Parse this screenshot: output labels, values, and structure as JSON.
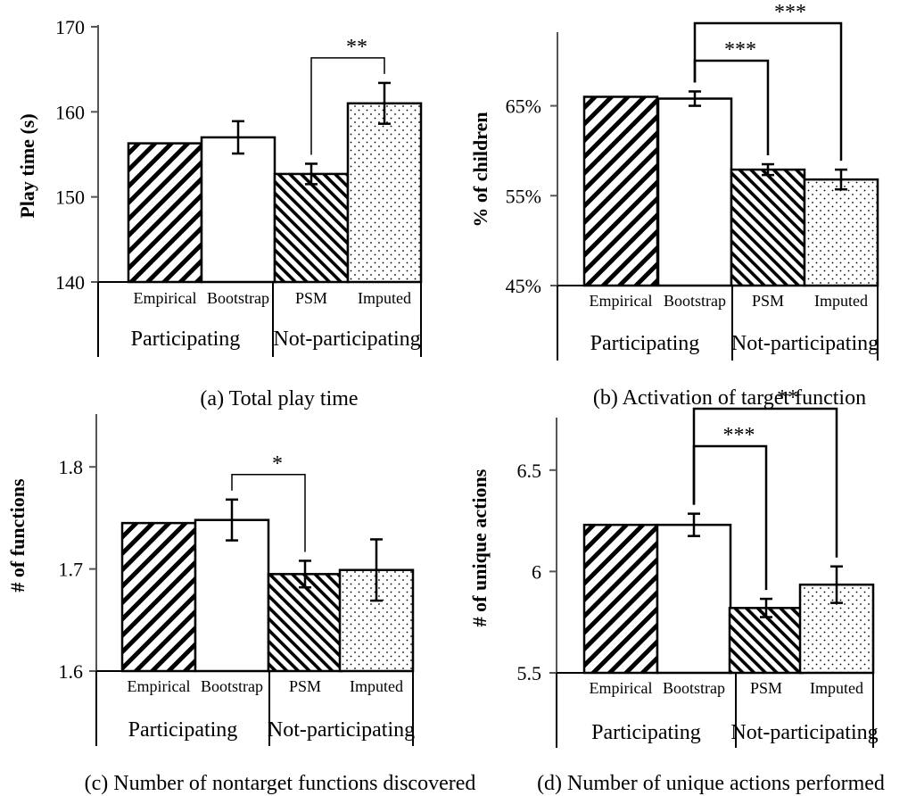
{
  "chart_data": [
    {
      "type": "bar",
      "panel": "a",
      "caption": "(a) Total play time",
      "ylabel": "Play time (s)",
      "ylim": [
        140,
        170
      ],
      "yticks": [
        "140",
        "150",
        "160",
        "170"
      ],
      "grid": false,
      "categories": [
        "Empirical",
        "Bootstrap",
        "PSM",
        "Imputed"
      ],
      "groups": [
        "Participating",
        "Not-participating"
      ],
      "values": [
        156.3,
        157.0,
        152.7,
        161.0
      ],
      "errors": [
        null,
        1.9,
        1.2,
        2.4
      ],
      "patterns": [
        "diag-wide",
        "none",
        "diag-dense",
        "dots"
      ],
      "significance": [
        {
          "from": "PSM",
          "to": "Imputed",
          "label": "**"
        }
      ]
    },
    {
      "type": "bar",
      "panel": "b",
      "caption": "(b) Activation of target function",
      "ylabel": "% of children",
      "ylim": [
        45,
        73
      ],
      "yticks": [
        "45%",
        "55%",
        "65%"
      ],
      "grid": false,
      "categories": [
        "Empirical",
        "Bootstrap",
        "PSM",
        "Imputed"
      ],
      "groups": [
        "Participating",
        "Not-participating"
      ],
      "values": [
        66.0,
        65.8,
        57.9,
        56.8
      ],
      "errors": [
        null,
        0.8,
        0.6,
        1.1
      ],
      "patterns": [
        "diag-wide",
        "none",
        "diag-dense",
        "dots"
      ],
      "significance": [
        {
          "from": "Bootstrap",
          "to": "PSM",
          "label": "***"
        },
        {
          "from": "Bootstrap",
          "to": "Imputed",
          "label": "***"
        }
      ]
    },
    {
      "type": "bar",
      "panel": "c",
      "caption": "(c) Number of nontarget functions discovered",
      "ylabel": "# of functions",
      "ylim": [
        1.6,
        1.85
      ],
      "yticks": [
        "1.6",
        "1.7",
        "1.8"
      ],
      "grid": false,
      "categories": [
        "Empirical",
        "Bootstrap",
        "PSM",
        "Imputed"
      ],
      "groups": [
        "Participating",
        "Not-participating"
      ],
      "values": [
        1.745,
        1.748,
        1.695,
        1.699
      ],
      "errors": [
        null,
        0.02,
        0.013,
        0.03
      ],
      "patterns": [
        "diag-wide",
        "none",
        "diag-dense",
        "dots"
      ],
      "significance": [
        {
          "from": "Bootstrap",
          "to": "PSM",
          "label": "*"
        }
      ]
    },
    {
      "type": "bar",
      "panel": "d",
      "caption": "(d) Number of unique actions performed",
      "ylabel": "# of unique actions",
      "ylim": [
        5.5,
        6.75
      ],
      "yticks": [
        "5.5",
        "6",
        "6.5"
      ],
      "grid": false,
      "categories": [
        "Empirical",
        "Bootstrap",
        "PSM",
        "Imputed"
      ],
      "groups": [
        "Participating",
        "Not-participating"
      ],
      "values": [
        6.23,
        6.23,
        5.82,
        5.935
      ],
      "errors": [
        null,
        0.055,
        0.045,
        0.09
      ],
      "patterns": [
        "diag-wide",
        "none",
        "diag-dense",
        "dots"
      ],
      "significance": [
        {
          "from": "Bootstrap",
          "to": "PSM",
          "label": "***"
        },
        {
          "from": "Bootstrap",
          "to": "Imputed",
          "label": "**"
        }
      ]
    }
  ]
}
